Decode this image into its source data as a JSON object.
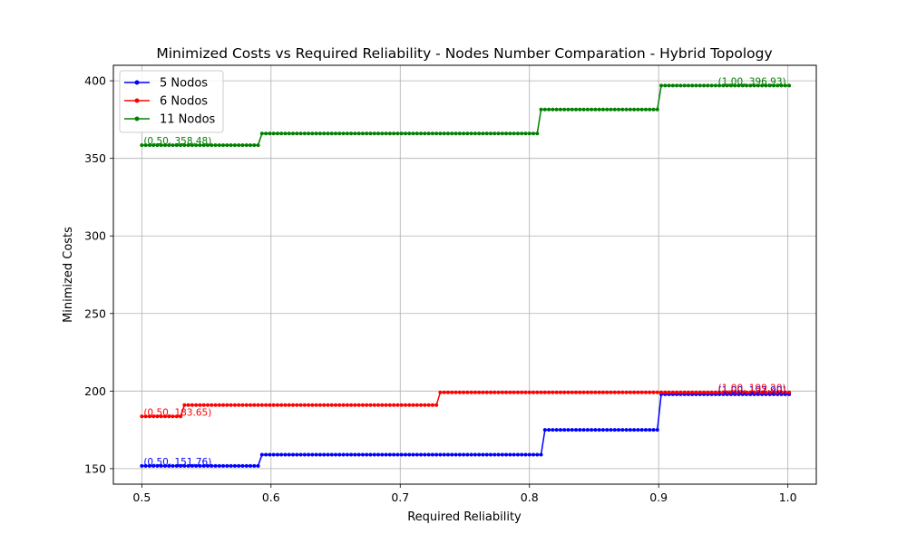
{
  "chart_data": {
    "type": "line",
    "title": "Minimized Costs vs Required Reliability - Nodes Number Comparation - Hybrid Topology",
    "xlabel": "Required Reliability",
    "ylabel": "Minimized Costs",
    "xlim": [
      0.478,
      1.022
    ],
    "ylim": [
      140,
      410
    ],
    "xticks": [
      0.5,
      0.6,
      0.7,
      0.8,
      0.9,
      1.0
    ],
    "xtick_labels": [
      "0.5",
      "0.6",
      "0.7",
      "0.8",
      "0.9",
      "1.0"
    ],
    "yticks": [
      150,
      200,
      250,
      300,
      350,
      400
    ],
    "ytick_labels": [
      "150",
      "200",
      "250",
      "300",
      "350",
      "400"
    ],
    "grid": true,
    "legend_position": "top-left",
    "x_start": 0.5,
    "x_end": 1.0,
    "x_step": 0.003,
    "series": [
      {
        "name": "5 Nodos",
        "color": "#0000ff",
        "steps": [
          [
            0.5,
            151.76
          ],
          [
            0.591,
            159.0
          ],
          [
            0.812,
            175.0
          ],
          [
            0.902,
            197.9
          ]
        ],
        "start_label": "(0.50, 151.76)",
        "end_label": "(1.00, 197.90)"
      },
      {
        "name": "6 Nodos",
        "color": "#ff0000",
        "steps": [
          [
            0.5,
            183.65
          ],
          [
            0.533,
            191.0
          ],
          [
            0.73,
            199.2
          ]
        ],
        "start_label": "(0.50, 183.65)",
        "end_label": "(1.00, 199.20)"
      },
      {
        "name": "11 Nodos",
        "color": "#008000",
        "steps": [
          [
            0.5,
            358.48
          ],
          [
            0.591,
            366.0
          ],
          [
            0.809,
            381.5
          ],
          [
            0.902,
            396.93
          ]
        ],
        "start_label": "(0.50, 358.48)",
        "end_label": "(1.00, 396.93)"
      }
    ]
  }
}
